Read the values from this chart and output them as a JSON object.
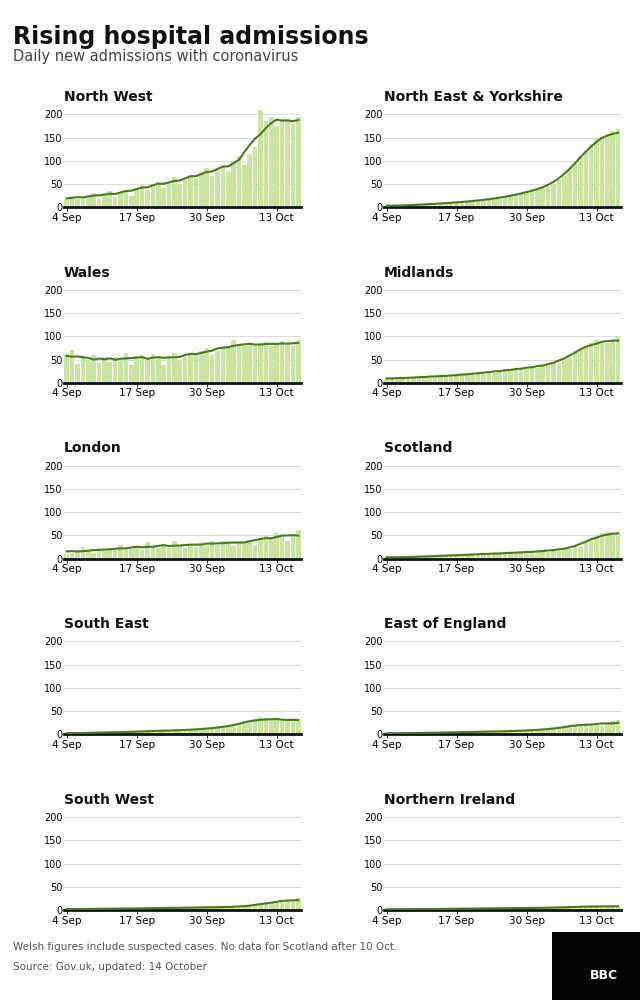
{
  "title": "Rising hospital admissions",
  "subtitle": "Daily new admissions with coronavirus",
  "footnote": "Welsh figures include suspected cases. No data for Scotland after 10 Oct.",
  "source": "Source: Gov.uk, updated: 14 October",
  "bar_color": "#c8e6a0",
  "line_color": "#4a7a1e",
  "background_color": "#ffffff",
  "regions": [
    "North West",
    "North East & Yorkshire",
    "Wales",
    "Midlands",
    "London",
    "Scotland",
    "South East",
    "East of England",
    "South West",
    "Northern Ireland"
  ],
  "yticks": [
    0,
    50,
    100,
    150,
    200
  ],
  "xtick_labels": [
    "4 Sep",
    "17 Sep",
    "30 Sep",
    "13 Oct"
  ],
  "xtick_positions": [
    0,
    13,
    26,
    39
  ],
  "n_days": 44,
  "data": {
    "North West": [
      15,
      22,
      18,
      20,
      25,
      30,
      18,
      28,
      35,
      22,
      32,
      38,
      25,
      42,
      50,
      38,
      48,
      55,
      42,
      55,
      65,
      50,
      58,
      70,
      62,
      75,
      85,
      68,
      80,
      90,
      78,
      100,
      110,
      90,
      115,
      130,
      210,
      185,
      195,
      175,
      185,
      190,
      180,
      195
    ],
    "North East & Yorkshire": [
      2,
      3,
      3,
      4,
      4,
      5,
      5,
      6,
      7,
      7,
      8,
      9,
      9,
      10,
      11,
      12,
      13,
      14,
      16,
      17,
      18,
      20,
      22,
      24,
      27,
      29,
      32,
      35,
      38,
      42,
      46,
      50,
      58,
      68,
      80,
      92,
      108,
      122,
      135,
      148,
      152,
      158,
      163,
      168
    ],
    "Wales": [
      62,
      70,
      40,
      60,
      50,
      60,
      42,
      55,
      45,
      55,
      48,
      65,
      38,
      58,
      60,
      50,
      62,
      55,
      38,
      58,
      65,
      50,
      55,
      65,
      60,
      68,
      75,
      60,
      68,
      75,
      80,
      92,
      82,
      80,
      82,
      80,
      85,
      88,
      80,
      82,
      90,
      82,
      80,
      92
    ],
    "Midlands": [
      8,
      10,
      9,
      11,
      10,
      13,
      11,
      14,
      12,
      15,
      13,
      17,
      14,
      18,
      16,
      20,
      18,
      23,
      20,
      25,
      22,
      28,
      25,
      30,
      27,
      33,
      30,
      36,
      33,
      40,
      36,
      44,
      40,
      52,
      58,
      68,
      72,
      80,
      85,
      92,
      88,
      85,
      90,
      100
    ],
    "London": [
      10,
      12,
      15,
      25,
      18,
      12,
      20,
      16,
      22,
      18,
      30,
      22,
      20,
      25,
      18,
      35,
      28,
      22,
      28,
      22,
      38,
      30,
      22,
      32,
      25,
      35,
      28,
      38,
      30,
      38,
      32,
      28,
      38,
      35,
      40,
      30,
      40,
      50,
      45,
      55,
      48,
      38,
      50,
      62
    ],
    "Scotland": [
      2,
      3,
      2,
      4,
      3,
      4,
      3,
      5,
      5,
      6,
      5,
      7,
      6,
      8,
      7,
      9,
      8,
      10,
      9,
      11,
      10,
      12,
      11,
      13,
      12,
      14,
      13,
      16,
      14,
      17,
      15,
      20,
      18,
      23,
      20,
      28,
      25,
      35,
      42,
      50,
      55,
      58,
      50,
      55
    ],
    "South East": [
      2,
      3,
      2,
      3,
      3,
      4,
      3,
      4,
      4,
      5,
      4,
      5,
      5,
      6,
      6,
      7,
      7,
      8,
      7,
      9,
      8,
      9,
      9,
      10,
      10,
      11,
      12,
      13,
      14,
      16,
      17,
      19,
      22,
      24,
      28,
      32,
      38,
      35,
      30,
      32,
      28,
      32,
      35,
      28
    ],
    "East of England": [
      2,
      2,
      2,
      3,
      2,
      3,
      3,
      3,
      3,
      4,
      3,
      4,
      4,
      5,
      4,
      5,
      5,
      6,
      5,
      6,
      6,
      7,
      6,
      7,
      7,
      8,
      8,
      9,
      9,
      10,
      11,
      12,
      13,
      15,
      17,
      19,
      22,
      24,
      22,
      20,
      18,
      22,
      28,
      30
    ],
    "South West": [
      2,
      2,
      2,
      2,
      2,
      3,
      2,
      3,
      3,
      3,
      3,
      3,
      3,
      4,
      3,
      4,
      4,
      4,
      4,
      5,
      4,
      5,
      5,
      5,
      5,
      6,
      5,
      6,
      6,
      7,
      6,
      7,
      7,
      8,
      9,
      10,
      11,
      14,
      18,
      20,
      18,
      20,
      22,
      25
    ],
    "Northern Ireland": [
      1,
      2,
      1,
      2,
      2,
      2,
      2,
      2,
      2,
      2,
      2,
      3,
      2,
      3,
      3,
      3,
      3,
      3,
      3,
      4,
      3,
      4,
      4,
      4,
      4,
      4,
      4,
      5,
      4,
      5,
      5,
      5,
      5,
      6,
      6,
      7,
      7,
      8,
      7,
      8,
      7,
      8,
      8,
      9
    ]
  }
}
